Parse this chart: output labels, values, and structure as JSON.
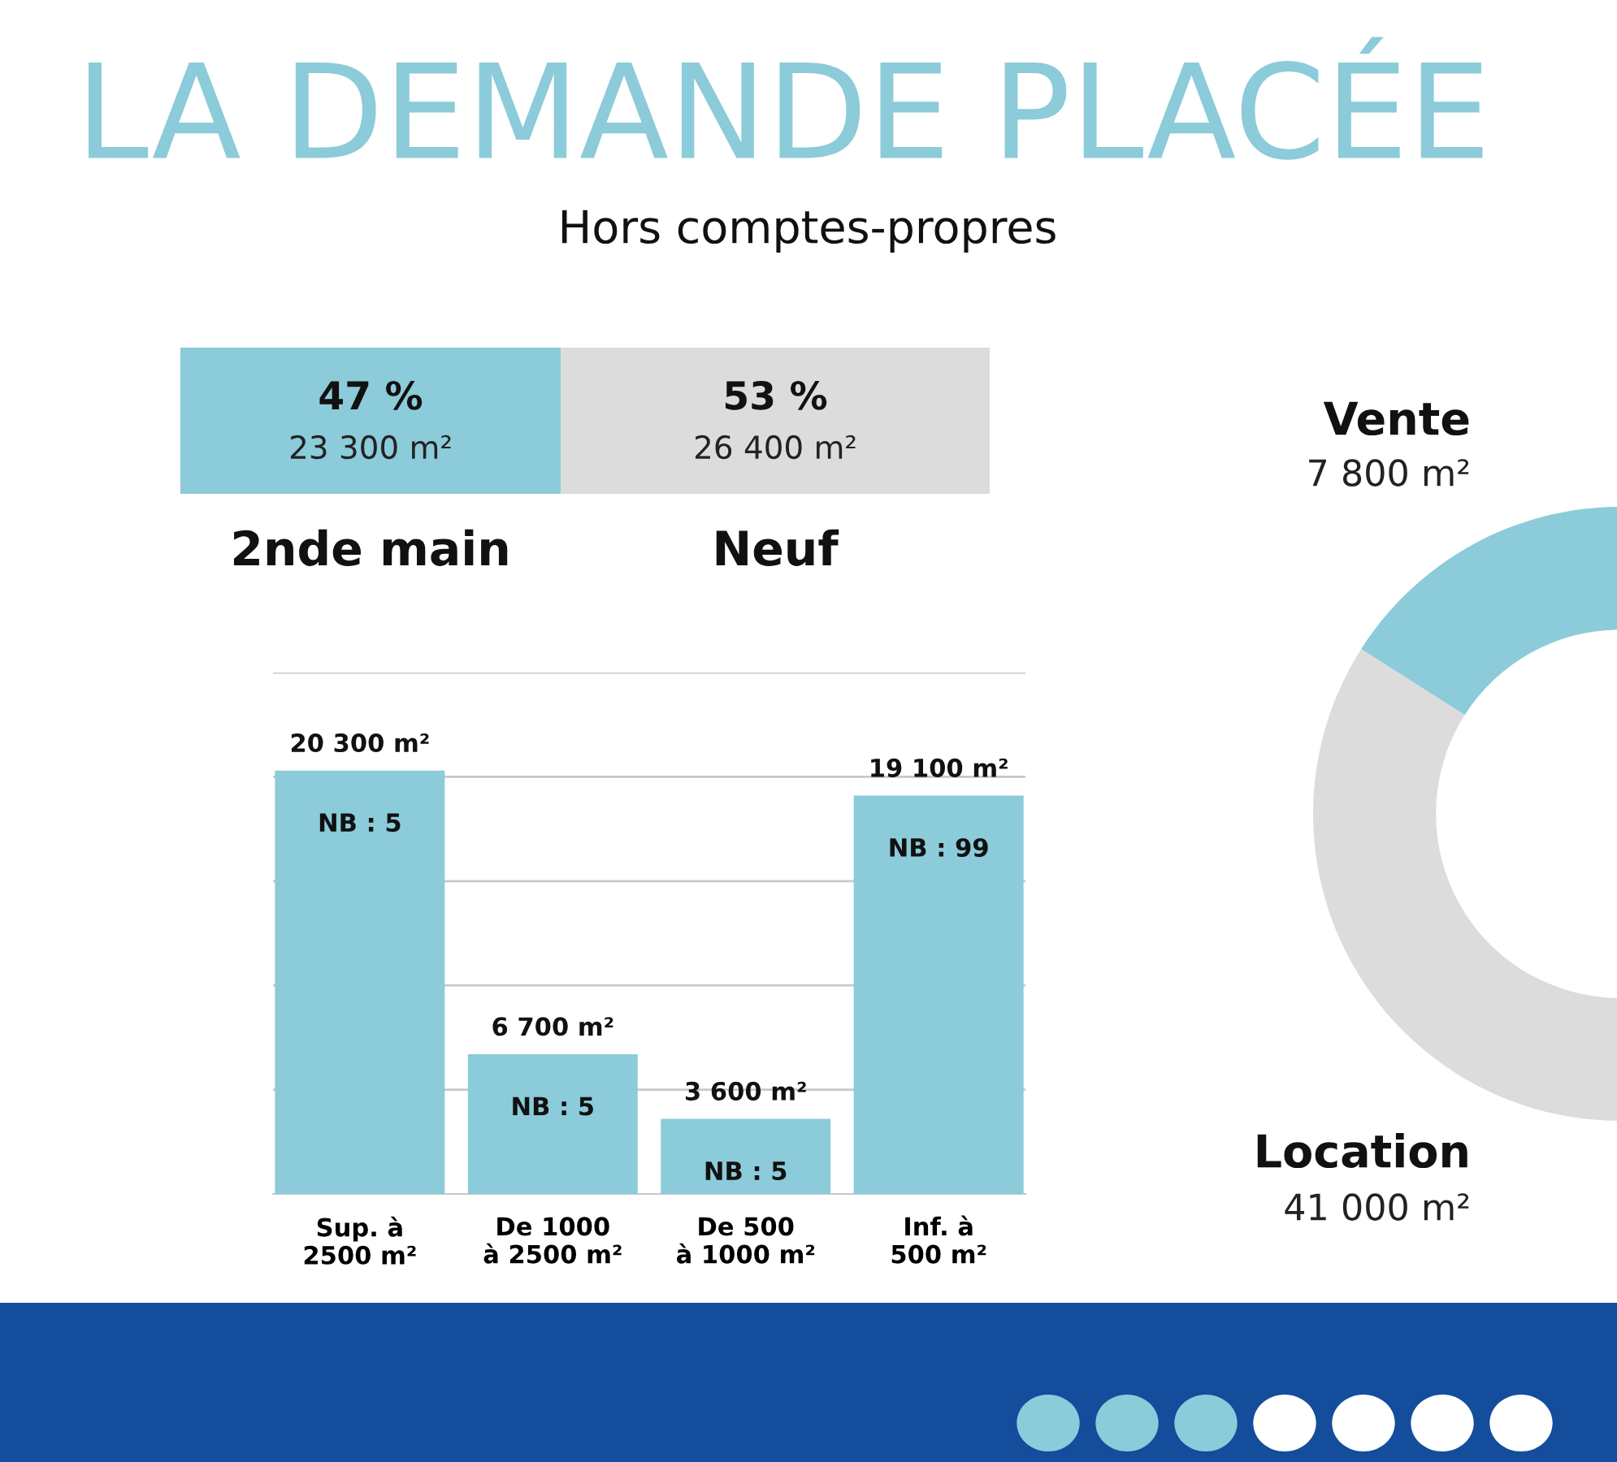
{
  "chart_data": [
    {
      "type": "bar",
      "orientation": "horizontal",
      "stacked": true,
      "title": "LA DEMANDE PLACÉE",
      "subtitle": "Hors comptes-propres",
      "categories": [
        null
      ],
      "xlim": [
        0,
        100
      ],
      "tick_labels": false,
      "series": [
        {
          "name": "2nde main",
          "color": "#8ccbd9",
          "values": [
            47
          ],
          "value_labels": [
            "47 %\n23 300 m²"
          ]
        },
        {
          "name": "Neuf",
          "color": "#dcdcdc",
          "values": [
            53
          ],
          "value_labels": [
            "53 %\n26 400 m²"
          ]
        }
      ]
    },
    {
      "type": "bar",
      "categories": [
        "Sup. à\n2500 m²",
        "De 1000\nà 2500 m²",
        "De 500\nà 1000 m²",
        "Inf. à\n500 m²"
      ],
      "values": [
        20300,
        6700,
        3600,
        19100
      ],
      "color": "#8ccbd9",
      "value_labels": [
        "20 300 m²",
        "6 700 m²",
        "3 600 m²",
        "19 100 m²"
      ],
      "annotations": [
        {
          "text": "NB : 5",
          "x": "Sup. à\n2500 m²",
          "y": 20300
        },
        {
          "text": "NB : 5",
          "x": "De 1000\nà 2500 m²",
          "y": 6700
        },
        {
          "text": "NB : 5",
          "x": "De 500\nà 1000 m²",
          "y": 3600
        },
        {
          "text": "NB : 99",
          "x": "Inf. à\n500 m²",
          "y": 19100
        }
      ],
      "ylim": [
        0,
        25000
      ],
      "yticks": [
        {
          "value": 5000,
          "label": null
        },
        {
          "value": 10000,
          "label": null
        },
        {
          "value": 15000,
          "label": null
        },
        {
          "value": 20000,
          "label": null
        },
        {
          "value": 25000,
          "label": null
        }
      ],
      "grid": "y",
      "tick_labels": "x"
    },
    {
      "type": "donut",
      "categories": [
        "Vente",
        "Location"
      ],
      "values": [
        7800,
        41000
      ],
      "colors": [
        "#8ccbd9",
        "#dcdcdc"
      ],
      "value_labels": [
        "7 800 m²",
        "41 000 m²"
      ]
    }
  ]
}
